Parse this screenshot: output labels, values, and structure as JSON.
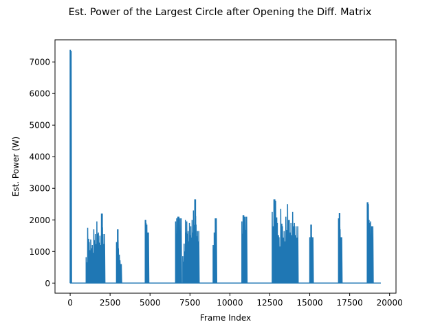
{
  "chart_data": {
    "type": "line",
    "title": "Est. Power of the Largest Circle after Opening the Diff. Matrix",
    "xlabel": "Frame Index",
    "ylabel": "Est. Power (W)",
    "xlim": [
      -950,
      20400
    ],
    "ylim": [
      -320,
      7700
    ],
    "x_ticks": [
      0,
      2500,
      5000,
      7500,
      10000,
      12500,
      15000,
      17500,
      20000
    ],
    "x_tick_labels": [
      "0",
      "2500",
      "5000",
      "7500",
      "10000",
      "12500",
      "15000",
      "17500",
      "20000"
    ],
    "y_ticks": [
      0,
      1000,
      2000,
      3000,
      4000,
      5000,
      6000,
      7000
    ],
    "y_tick_labels": [
      "0",
      "1000",
      "2000",
      "3000",
      "4000",
      "5000",
      "6000",
      "7000"
    ],
    "grid": false,
    "line_color": "#1f77b4",
    "x_range_data": [
      0,
      19450
    ],
    "baseline_value": 0,
    "bursts": [
      {
        "x_start": 0,
        "x_end": 60,
        "peak": 7380,
        "peaks": [
          7380,
          7300,
          7350
        ]
      },
      {
        "x_start": 1000,
        "x_end": 2150,
        "peak": 2200,
        "peaks": [
          820,
          1750,
          1300,
          1380,
          1200,
          1700,
          1550,
          1950,
          1600,
          1500,
          2200,
          1550
        ]
      },
      {
        "x_start": 2900,
        "x_end": 3200,
        "peak": 1700,
        "peaks": [
          1300,
          1700,
          1100,
          900,
          600
        ]
      },
      {
        "x_start": 4700,
        "x_end": 4900,
        "peak": 2000,
        "peaks": [
          2000,
          1900,
          1850,
          1600
        ]
      },
      {
        "x_start": 6600,
        "x_end": 6950,
        "peak": 2100,
        "peaks": [
          1950,
          2050,
          2100,
          2100,
          2050
        ]
      },
      {
        "x_start": 7050,
        "x_end": 8050,
        "peak": 2650,
        "peaks": [
          850,
          1250,
          2000,
          1950,
          1650,
          1900,
          1800,
          2000,
          2300,
          2650,
          1850,
          1650
        ]
      },
      {
        "x_start": 8950,
        "x_end": 9150,
        "peak": 2050,
        "peaks": [
          1200,
          1600,
          2050
        ]
      },
      {
        "x_start": 10750,
        "x_end": 11050,
        "peak": 2150,
        "peaks": [
          1950,
          2150,
          2100,
          2100
        ]
      },
      {
        "x_start": 12650,
        "x_end": 14250,
        "peak": 2650,
        "peaks": [
          2250,
          2650,
          2600,
          1900,
          1450,
          2350,
          1800,
          1650,
          2100,
          2500,
          2000,
          1900,
          2250,
          1900,
          1800
        ]
      },
      {
        "x_start": 15000,
        "x_end": 15200,
        "peak": 1850,
        "peaks": [
          1450,
          1850,
          1450
        ]
      },
      {
        "x_start": 16800,
        "x_end": 17000,
        "peak": 2220,
        "peaks": [
          2050,
          2220,
          1700,
          1450
        ]
      },
      {
        "x_start": 18600,
        "x_end": 18950,
        "peak": 2560,
        "peaks": [
          2560,
          2500,
          1900,
          1950,
          1800
        ]
      }
    ]
  }
}
